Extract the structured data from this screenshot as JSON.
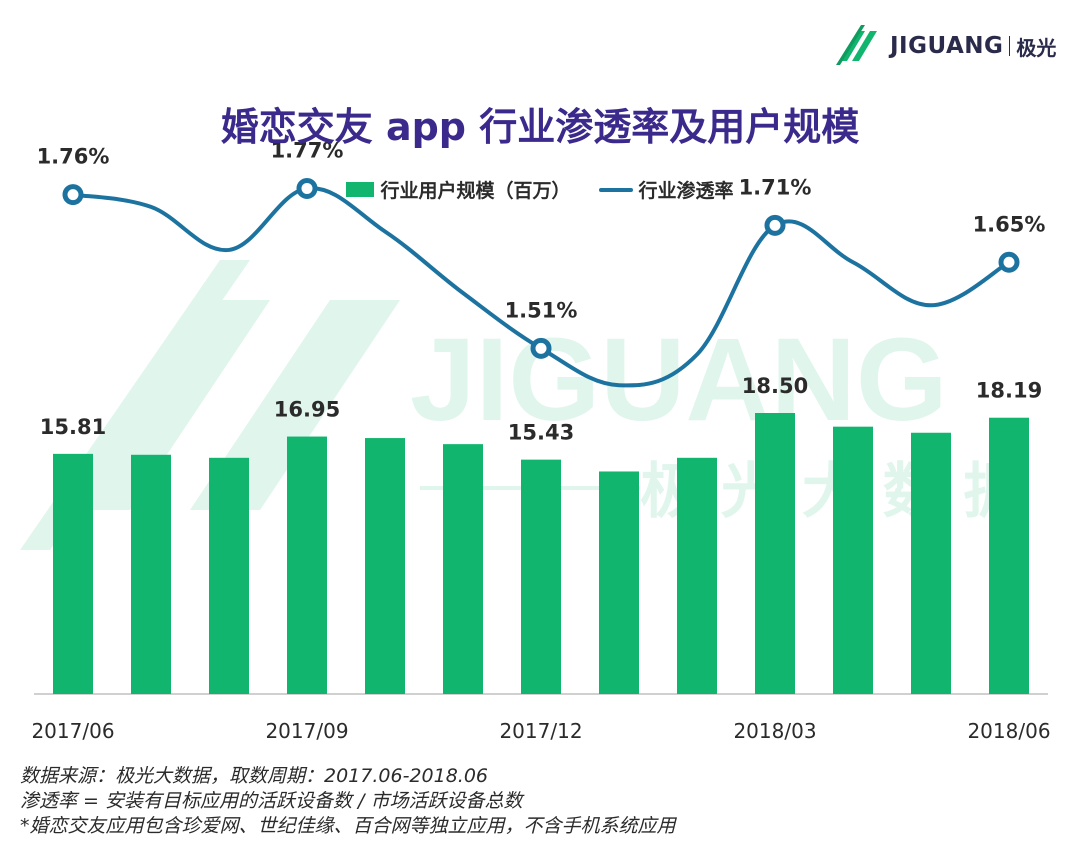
{
  "logo": {
    "text": "JIGUANG",
    "cn": "极光"
  },
  "title": "婚恋交友 app 行业渗透率及用户规模",
  "legend": {
    "bar_label": "行业用户规模（百万）",
    "line_label": "行业渗透率"
  },
  "watermark": {
    "text": "JIGUANG",
    "cn": "极 光 大 数 据"
  },
  "colors": {
    "bar": "#12b56e",
    "line": "#1d73a0",
    "title": "#3b2a8c"
  },
  "chart_data": {
    "type": "bar",
    "categories": [
      "2017/06",
      "2017/07",
      "2017/08",
      "2017/09",
      "2017/10",
      "2017/11",
      "2017/12",
      "2018/01",
      "2018/02",
      "2018/03",
      "2018/04",
      "2018/05",
      "2018/06"
    ],
    "x_tick_labels": [
      "2017/06",
      "",
      "",
      "2017/09",
      "",
      "",
      "2017/12",
      "",
      "",
      "2018/03",
      "",
      "",
      "2018/06"
    ],
    "series": [
      {
        "name": "行业用户规模（百万）",
        "type": "bar",
        "values": [
          15.81,
          15.75,
          15.55,
          16.95,
          16.85,
          16.45,
          15.43,
          14.65,
          15.55,
          18.5,
          17.6,
          17.2,
          18.19
        ],
        "labels": [
          "15.81",
          "",
          "",
          "16.95",
          "",
          "",
          "15.43",
          "",
          "",
          "18.50",
          "",
          "",
          "18.19"
        ]
      },
      {
        "name": "行业渗透率",
        "type": "line",
        "values": [
          1.76,
          1.74,
          1.67,
          1.77,
          1.7,
          1.6,
          1.51,
          1.45,
          1.5,
          1.71,
          1.65,
          1.58,
          1.65
        ],
        "labels": [
          "1.76%",
          "",
          "",
          "1.77%",
          "",
          "",
          "1.51%",
          "",
          "",
          "1.71%",
          "",
          "",
          "1.65%"
        ],
        "marker_indices": [
          0,
          3,
          6,
          9,
          12
        ]
      }
    ],
    "ylim_bar": [
      0,
      18.5
    ],
    "ylim_line": [
      1.0,
      2.0
    ],
    "legend_position": "top",
    "grid": false
  },
  "footnotes": [
    "数据来源：极光大数据，取数周期：2017.06-2018.06",
    "渗透率 = 安装有目标应用的活跃设备数 / 市场活跃设备总数",
    "*婚恋交友应用包含珍爱网、世纪佳缘、百合网等独立应用，不含手机系统应用"
  ]
}
